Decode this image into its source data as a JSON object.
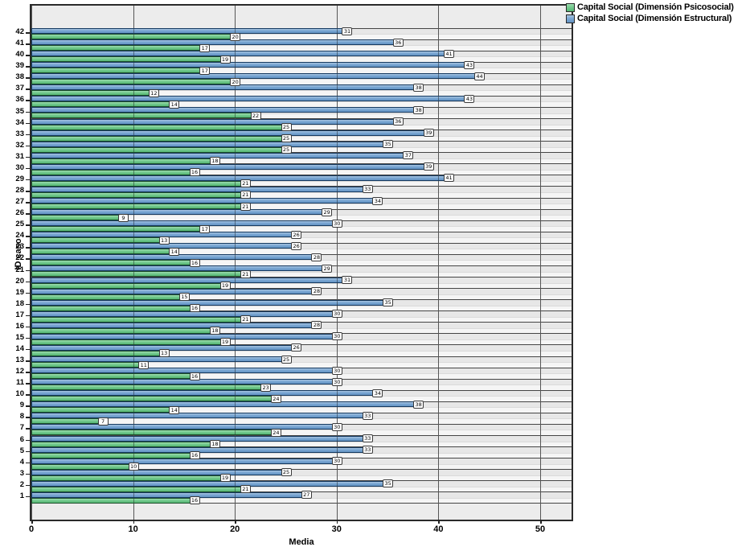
{
  "axes": {
    "x_title": "Media",
    "y_title": "ID caso"
  },
  "legend": {
    "items": [
      {
        "label": "Capital Social (Dimensión Psicosocial)",
        "color": "#74ca8e"
      },
      {
        "label": "Capital Social (Dimensión Estructural)",
        "color": "#7aa7d3"
      }
    ]
  },
  "chart_data": {
    "type": "bar",
    "orientation": "horizontal",
    "title": "",
    "xlabel": "Media",
    "ylabel": "ID caso",
    "xlim": [
      0,
      53
    ],
    "xticks": [
      0,
      10,
      20,
      30,
      40,
      50
    ],
    "grid": true,
    "bar_labels": true,
    "legend_position": "top-right",
    "categories": [
      1,
      2,
      3,
      4,
      5,
      6,
      7,
      8,
      9,
      10,
      11,
      12,
      13,
      14,
      15,
      16,
      17,
      18,
      19,
      20,
      21,
      22,
      23,
      24,
      25,
      26,
      27,
      28,
      29,
      30,
      31,
      32,
      33,
      34,
      35,
      36,
      37,
      38,
      39,
      40,
      41,
      42
    ],
    "series": [
      {
        "name": "Capital Social (Dimensión Psicosocial)",
        "color": "#74ca8e",
        "values": [
          16,
          21,
          19,
          10,
          16,
          18,
          24,
          7,
          14,
          24,
          23,
          16,
          11,
          13,
          19,
          18,
          21,
          16,
          15,
          19,
          21,
          16,
          14,
          13,
          17,
          9,
          21,
          21,
          21,
          16,
          18,
          25,
          25,
          25,
          22,
          14,
          12,
          20,
          17,
          19,
          17,
          20
        ]
      },
      {
        "name": "Capital Social (Dimensión Estructural)",
        "color": "#7aa7d3",
        "values": [
          27,
          35,
          25,
          30,
          33,
          33,
          30,
          33,
          38,
          34,
          30,
          30,
          25,
          26,
          30,
          28,
          30,
          35,
          28,
          31,
          29,
          28,
          26,
          26,
          30,
          29,
          34,
          33,
          41,
          39,
          37,
          35,
          39,
          36,
          38,
          43,
          38,
          44,
          43,
          41,
          36,
          31
        ]
      }
    ]
  }
}
